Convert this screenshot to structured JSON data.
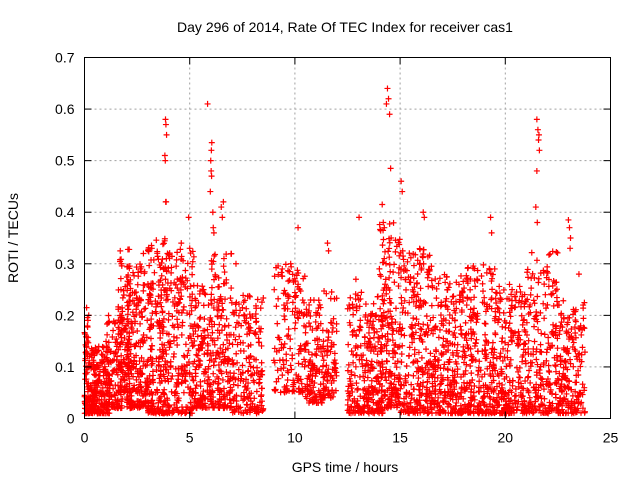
{
  "chart_data": {
    "type": "scatter",
    "title": "Day 296 of 2014, Rate Of TEC Index for receiver cas1",
    "xlabel": "GPS time / hours",
    "ylabel": "ROTI / TECUs",
    "xlim": [
      0,
      25
    ],
    "ylim": [
      0,
      0.7
    ],
    "x_ticks": [
      0,
      5,
      10,
      15,
      20,
      25
    ],
    "x_tick_labels": [
      "0",
      "5",
      "10",
      "15",
      "20",
      "25"
    ],
    "y_ticks": [
      0,
      0.1,
      0.2,
      0.3,
      0.4,
      0.5,
      0.6,
      0.7
    ],
    "y_tick_labels": [
      "0",
      "0.1",
      "0.2",
      "0.3",
      "0.4",
      "0.5",
      "0.6",
      "0.7"
    ],
    "grid": true,
    "marker": "+",
    "color": "#ff0000",
    "series": [
      {
        "name": "ROTI",
        "clusters": [
          {
            "x_range": [
              0.0,
              1.2
            ],
            "y_range": [
              0.01,
              0.14
            ],
            "n": 260
          },
          {
            "x_range": [
              0.0,
              0.2
            ],
            "y_range": [
              0.14,
              0.21
            ],
            "n": 12
          },
          {
            "x_range": [
              1.0,
              1.8
            ],
            "y_range": [
              0.02,
              0.2
            ],
            "n": 120
          },
          {
            "x_range": [
              1.6,
              2.2
            ],
            "y_range": [
              0.05,
              0.33
            ],
            "n": 110
          },
          {
            "x_range": [
              2.0,
              3.0
            ],
            "y_range": [
              0.02,
              0.3
            ],
            "n": 220
          },
          {
            "x_range": [
              3.0,
              4.0
            ],
            "y_range": [
              0.01,
              0.35
            ],
            "n": 240
          },
          {
            "x_range": [
              4.0,
              5.2
            ],
            "y_range": [
              0.01,
              0.33
            ],
            "n": 200
          },
          {
            "x_range": [
              5.2,
              6.0
            ],
            "y_range": [
              0.02,
              0.26
            ],
            "n": 130
          },
          {
            "x_range": [
              6.0,
              7.0
            ],
            "y_range": [
              0.02,
              0.32
            ],
            "n": 180
          },
          {
            "x_range": [
              7.0,
              8.5
            ],
            "y_range": [
              0.01,
              0.24
            ],
            "n": 190
          },
          {
            "x_range": [
              9.0,
              10.5
            ],
            "y_range": [
              0.05,
              0.3
            ],
            "n": 150
          },
          {
            "x_range": [
              10.5,
              11.3
            ],
            "y_range": [
              0.03,
              0.23
            ],
            "n": 110
          },
          {
            "x_range": [
              11.3,
              12.0
            ],
            "y_range": [
              0.04,
              0.25
            ],
            "n": 90
          },
          {
            "x_range": [
              12.5,
              13.3
            ],
            "y_range": [
              0.01,
              0.25
            ],
            "n": 110
          },
          {
            "x_range": [
              13.3,
              14.2
            ],
            "y_range": [
              0.01,
              0.24
            ],
            "n": 150
          },
          {
            "x_range": [
              14.0,
              15.0
            ],
            "y_range": [
              0.02,
              0.38
            ],
            "n": 190
          },
          {
            "x_range": [
              15.0,
              16.5
            ],
            "y_range": [
              0.01,
              0.33
            ],
            "n": 260
          },
          {
            "x_range": [
              16.5,
              18.0
            ],
            "y_range": [
              0.01,
              0.28
            ],
            "n": 260
          },
          {
            "x_range": [
              18.0,
              19.5
            ],
            "y_range": [
              0.01,
              0.3
            ],
            "n": 260
          },
          {
            "x_range": [
              19.5,
              21.0
            ],
            "y_range": [
              0.01,
              0.26
            ],
            "n": 240
          },
          {
            "x_range": [
              21.0,
              22.5
            ],
            "y_range": [
              0.01,
              0.33
            ],
            "n": 220
          },
          {
            "x_range": [
              22.5,
              23.8
            ],
            "y_range": [
              0.01,
              0.23
            ],
            "n": 190
          }
        ],
        "points": [
          [
            3.85,
            0.58
          ],
          [
            3.87,
            0.57
          ],
          [
            3.9,
            0.55
          ],
          [
            3.82,
            0.51
          ],
          [
            3.84,
            0.5
          ],
          [
            3.86,
            0.42
          ],
          [
            3.88,
            0.42
          ],
          [
            5.85,
            0.61
          ],
          [
            6.05,
            0.535
          ],
          [
            6.03,
            0.52
          ],
          [
            6.0,
            0.5
          ],
          [
            6.02,
            0.48
          ],
          [
            6.04,
            0.47
          ],
          [
            5.98,
            0.44
          ],
          [
            6.1,
            0.4
          ],
          [
            6.12,
            0.37
          ],
          [
            6.15,
            0.36
          ],
          [
            6.5,
            0.41
          ],
          [
            6.55,
            0.39
          ],
          [
            6.6,
            0.42
          ],
          [
            4.95,
            0.39
          ],
          [
            14.4,
            0.64
          ],
          [
            14.45,
            0.62
          ],
          [
            14.35,
            0.61
          ],
          [
            14.5,
            0.59
          ],
          [
            14.55,
            0.485
          ],
          [
            15.05,
            0.46
          ],
          [
            15.1,
            0.44
          ],
          [
            14.15,
            0.415
          ],
          [
            14.2,
            0.38
          ],
          [
            14.25,
            0.37
          ],
          [
            13.05,
            0.39
          ],
          [
            10.15,
            0.37
          ],
          [
            11.55,
            0.34
          ],
          [
            11.6,
            0.325
          ],
          [
            16.1,
            0.4
          ],
          [
            16.15,
            0.39
          ],
          [
            19.3,
            0.39
          ],
          [
            19.35,
            0.36
          ],
          [
            21.5,
            0.58
          ],
          [
            21.55,
            0.56
          ],
          [
            21.6,
            0.55
          ],
          [
            21.58,
            0.54
          ],
          [
            21.62,
            0.52
          ],
          [
            21.5,
            0.48
          ],
          [
            21.45,
            0.41
          ],
          [
            21.52,
            0.38
          ],
          [
            23.0,
            0.385
          ],
          [
            23.05,
            0.37
          ],
          [
            23.1,
            0.35
          ],
          [
            23.08,
            0.33
          ],
          [
            23.5,
            0.28
          ],
          [
            7.2,
            0.3
          ],
          [
            2.8,
            0.32
          ],
          [
            3.2,
            0.33
          ],
          [
            4.6,
            0.34
          ],
          [
            0.1,
            0.215
          ],
          [
            0.2,
            0.2
          ],
          [
            1.7,
            0.325
          ],
          [
            1.75,
            0.3
          ],
          [
            9.4,
            0.29
          ],
          [
            9.8,
            0.3
          ],
          [
            12.9,
            0.27
          ],
          [
            17.8,
            0.26
          ],
          [
            18.2,
            0.27
          ],
          [
            20.2,
            0.26
          ],
          [
            22.2,
            0.24
          ],
          [
            23.7,
            0.22
          ]
        ]
      }
    ]
  }
}
